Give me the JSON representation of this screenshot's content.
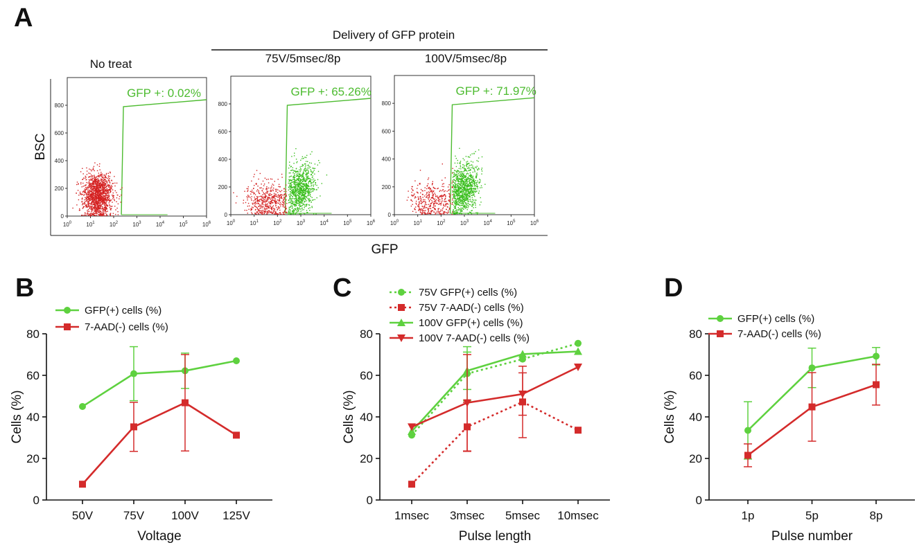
{
  "colors": {
    "green": "#5ed13f",
    "red": "#d42b2b",
    "flowRed": "#d42020",
    "flowGreen": "#3bbf1f",
    "gateGreen": "#4cbb2f"
  },
  "panelA": {
    "letter": "A",
    "delivery_label": "Delivery of GFP protein",
    "y_label": "BSC",
    "x_label": "GFP",
    "x_ticks": [
      "10",
      "10",
      "10",
      "10",
      "10",
      "10",
      "10"
    ],
    "x_tick_exps": [
      "0",
      "1",
      "2",
      "3",
      "4",
      "5",
      "6"
    ],
    "y_ticks": [
      "0",
      "200",
      "400",
      "600",
      "800"
    ],
    "plots": [
      {
        "title": "No treat",
        "gate": "GFP +: 0.02%",
        "gfp_pos_fraction": 0.0002
      },
      {
        "title": "75V/5msec/8p",
        "gate": "GFP +: 65.26%",
        "gfp_pos_fraction": 0.6526
      },
      {
        "title": "100V/5msec/8p",
        "gate": "GFP +: 71.97%",
        "gfp_pos_fraction": 0.7197
      }
    ]
  },
  "chart_data": [
    {
      "panel": "B",
      "type": "line",
      "categories": [
        "50V",
        "75V",
        "100V",
        "125V"
      ],
      "xlabel": "Voltage",
      "ylabel": "Cells (%)",
      "ylim": [
        0,
        80
      ],
      "yticks": [
        "0",
        "20",
        "40",
        "60",
        "80"
      ],
      "series": [
        {
          "name": "GFP(+) cells (%)",
          "values": [
            45.0,
            60.8,
            62.2,
            67.0
          ],
          "err": [
            0,
            13,
            8.5,
            0
          ],
          "color": "#5ed13f",
          "marker": "circle",
          "dash": false
        },
        {
          "name": "7-AAD(-) cells (%)",
          "values": [
            7.6,
            35.2,
            46.8,
            31.2
          ],
          "err": [
            0,
            11.8,
            23.2,
            0
          ],
          "color": "#d42b2b",
          "marker": "square",
          "dash": false
        }
      ]
    },
    {
      "panel": "C",
      "type": "line",
      "categories": [
        "1msec",
        "3msec",
        "5msec",
        "10msec"
      ],
      "xlabel": "Pulse length",
      "ylabel": "Cells (%)",
      "ylim": [
        0,
        80
      ],
      "yticks": [
        "0",
        "20",
        "40",
        "60",
        "80"
      ],
      "series": [
        {
          "name": "75V GFP(+) cells (%)",
          "values": [
            31.2,
            60.8,
            67.8,
            75.4
          ],
          "err": [
            0,
            13,
            0,
            0
          ],
          "color": "#5ed13f",
          "marker": "circle",
          "dash": true
        },
        {
          "name": "75V 7-AAD(-) cells (%)",
          "values": [
            7.6,
            35.2,
            47.2,
            33.6
          ],
          "err": [
            0,
            11.8,
            17.2,
            0
          ],
          "color": "#d42b2b",
          "marker": "square",
          "dash": true
        },
        {
          "name": "100V GFP(+) cells (%)",
          "values": [
            33.0,
            62.2,
            70.2,
            71.5
          ],
          "err": [
            0,
            9,
            0,
            0
          ],
          "color": "#5ed13f",
          "marker": "triangle",
          "dash": false
        },
        {
          "name": "100V 7-AAD(-) cells (%)",
          "values": [
            35.2,
            46.8,
            51.0,
            64.0
          ],
          "err": [
            0,
            23.2,
            10.2,
            0
          ],
          "color": "#d42b2b",
          "marker": "triangle-down",
          "dash": false
        }
      ]
    },
    {
      "panel": "D",
      "type": "line",
      "categories": [
        "1p",
        "5p",
        "8p"
      ],
      "xlabel": "Pulse number",
      "ylabel": "Cells (%)",
      "ylim": [
        0,
        80
      ],
      "yticks": [
        "0",
        "20",
        "40",
        "60",
        "80"
      ],
      "series": [
        {
          "name": "GFP(+) cells (%)",
          "values": [
            33.5,
            63.6,
            69.2
          ],
          "err": [
            13.8,
            9.5,
            4.2
          ],
          "color": "#5ed13f",
          "marker": "circle",
          "dash": false
        },
        {
          "name": "7-AAD(-) cells (%)",
          "values": [
            21.5,
            44.8,
            55.5
          ],
          "err": [
            5.5,
            16.5,
            9.8
          ],
          "color": "#d42b2b",
          "marker": "square",
          "dash": false
        }
      ]
    }
  ]
}
